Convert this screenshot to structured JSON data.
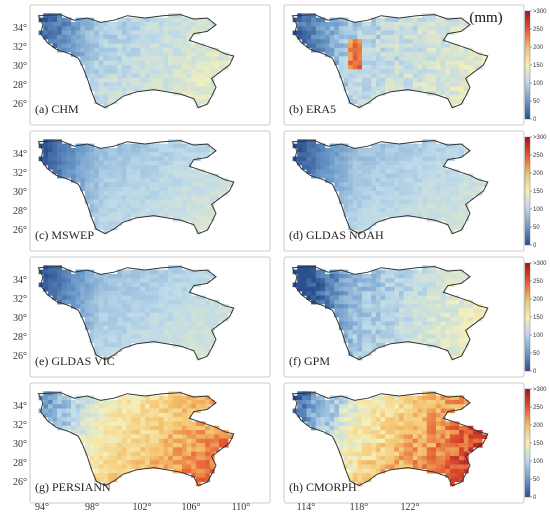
{
  "unit_label": "(mm)",
  "panels": [
    {
      "label": "(a) CHM",
      "scheme": "mild"
    },
    {
      "label": "(b) ERA5",
      "scheme": "era5"
    },
    {
      "label": "(c) MSWEP",
      "scheme": "cool"
    },
    {
      "label": "(d) GLDAS NOAH",
      "scheme": "cool"
    },
    {
      "label": "(e) GLDAS VIC",
      "scheme": "cool"
    },
    {
      "label": "(f) GPM",
      "scheme": "gpm"
    },
    {
      "label": "(g) PERSIANN",
      "scheme": "warm"
    },
    {
      "label": "(h) CMORPH",
      "scheme": "hot"
    }
  ],
  "y_ticks": [
    "34°",
    "32°",
    "30°",
    "28°",
    "26°"
  ],
  "x_ticks": [
    "94°",
    "98°",
    "102°",
    "106°",
    "110°",
    "114°",
    "118°",
    "122°"
  ],
  "colorbar": {
    "ticks": [
      ">300",
      "250",
      "200",
      "150",
      "100",
      "50",
      "0"
    ],
    "colors": [
      "#2a4f8f",
      "#6d9bc9",
      "#bcd9ea",
      "#f5f0b8",
      "#f5c06a",
      "#e2552f",
      "#a50f24"
    ]
  }
}
